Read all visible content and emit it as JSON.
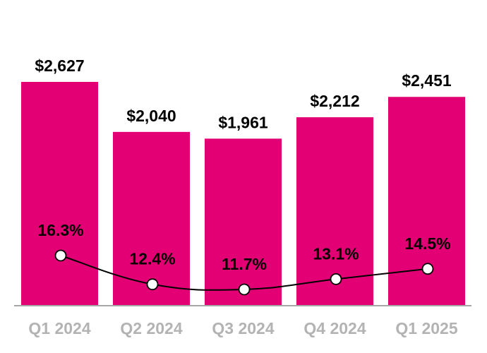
{
  "chart_data": {
    "type": "bar",
    "categories": [
      "Q1 2024",
      "Q2 2024",
      "Q3 2024",
      "Q4 2024",
      "Q1 2025"
    ],
    "series": [
      {
        "kind": "bar",
        "values": [
          2627,
          2040,
          1961,
          2212,
          2451
        ],
        "labels": [
          "$2,627",
          "$2,040",
          "$1,961",
          "$2,212",
          "$2,451"
        ],
        "color": "#e20074"
      },
      {
        "kind": "line",
        "values": [
          16.3,
          12.4,
          11.7,
          13.1,
          14.5
        ],
        "labels": [
          "16.3%",
          "12.4%",
          "11.7%",
          "13.1%",
          "14.5%"
        ],
        "color": "#000000",
        "marker": "white-circle"
      }
    ],
    "title": "",
    "xlabel": "",
    "ylabel": "",
    "grid": false,
    "legend": "none",
    "colors": {
      "bar": "#e20074",
      "axis": "#a6a6a6",
      "tick_label": "#b3b3b3"
    }
  }
}
